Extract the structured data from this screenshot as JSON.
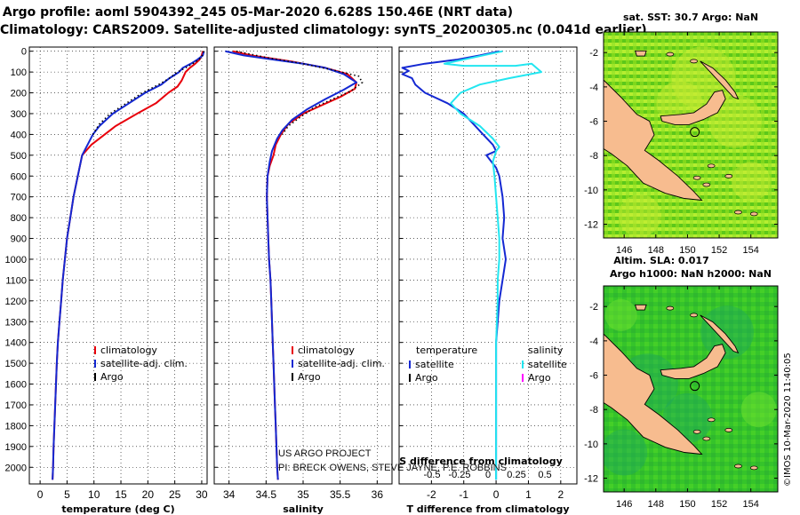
{
  "header": {
    "title_line1": "Argo profile: aoml 5904392_245 05-Mar-2020 6.628S 150.46E (NRT data)",
    "title_line2": "Climatology: CARS2009. Satellite-adjusted climatology: synTS_20200305.nc (0.041d earlier)"
  },
  "credit": "©IMOS 10-Mar-2020 11:40:05",
  "colors": {
    "climatology": "#e8000b",
    "satellite": "#1428d2",
    "argo": "#000000",
    "sal_satellite": "#22e6f0",
    "sal_argo": "#ff00ff",
    "land": "#f7bc8f"
  },
  "chart_data": [
    {
      "type": "line",
      "name": "temperature-panel",
      "xlabel": "temperature (deg C)",
      "ylabel": "depth",
      "xlim": [
        -2,
        31
      ],
      "ylim": [
        2080,
        -20
      ],
      "xticks": [
        0,
        5,
        10,
        15,
        20,
        25,
        30
      ],
      "yticks": [
        0,
        100,
        200,
        300,
        400,
        500,
        600,
        700,
        800,
        900,
        1000,
        1100,
        1200,
        1300,
        1400,
        1500,
        1600,
        1700,
        1800,
        1900,
        2000
      ],
      "legend": [
        "climatology",
        "satellite-adj. clim.",
        "Argo"
      ],
      "series": [
        {
          "name": "climatology",
          "color": "#e8000b",
          "points": [
            [
              30.2,
              0
            ],
            [
              30.0,
              20
            ],
            [
              29.6,
              40
            ],
            [
              28.8,
              60
            ],
            [
              27.8,
              80
            ],
            [
              27.0,
              100
            ],
            [
              26.3,
              140
            ],
            [
              25.5,
              170
            ],
            [
              23.8,
              200
            ],
            [
              21.5,
              250
            ],
            [
              18.0,
              300
            ],
            [
              14.0,
              360
            ],
            [
              11.0,
              420
            ],
            [
              9.5,
              450
            ],
            [
              7.8,
              500
            ],
            [
              7.0,
              600
            ],
            [
              6.2,
              700
            ],
            [
              5.6,
              800
            ],
            [
              5.0,
              900
            ],
            [
              4.6,
              1000
            ],
            [
              4.2,
              1100
            ],
            [
              3.9,
              1200
            ],
            [
              3.6,
              1300
            ],
            [
              3.3,
              1400
            ],
            [
              3.1,
              1500
            ],
            [
              2.95,
              1600
            ],
            [
              2.8,
              1700
            ],
            [
              2.65,
              1800
            ],
            [
              2.5,
              1900
            ],
            [
              2.4,
              2000
            ],
            [
              2.3,
              2060
            ]
          ]
        },
        {
          "name": "satellite",
          "color": "#1428d2",
          "points": [
            [
              30.4,
              0
            ],
            [
              30.2,
              20
            ],
            [
              29.2,
              40
            ],
            [
              28.0,
              60
            ],
            [
              26.5,
              80
            ],
            [
              25.8,
              100
            ],
            [
              24.0,
              130
            ],
            [
              22.5,
              160
            ],
            [
              19.5,
              200
            ],
            [
              16.5,
              250
            ],
            [
              13.5,
              300
            ],
            [
              11.0,
              360
            ],
            [
              9.8,
              400
            ],
            [
              8.8,
              450
            ],
            [
              7.8,
              500
            ],
            [
              7.0,
              600
            ],
            [
              6.2,
              700
            ],
            [
              5.6,
              800
            ],
            [
              5.0,
              900
            ],
            [
              4.6,
              1000
            ],
            [
              4.2,
              1100
            ],
            [
              3.9,
              1200
            ],
            [
              3.6,
              1300
            ],
            [
              3.3,
              1400
            ],
            [
              3.1,
              1500
            ],
            [
              2.95,
              1600
            ],
            [
              2.8,
              1700
            ],
            [
              2.65,
              1800
            ],
            [
              2.5,
              1900
            ],
            [
              2.4,
              2000
            ],
            [
              2.3,
              2060
            ]
          ]
        },
        {
          "name": "Argo",
          "color": "#000000",
          "dotted": true,
          "points": [
            [
              30.4,
              0
            ],
            [
              30.1,
              20
            ],
            [
              29.5,
              40
            ],
            [
              28.3,
              60
            ],
            [
              27.0,
              80
            ],
            [
              25.5,
              100
            ],
            [
              24.0,
              130
            ],
            [
              22.0,
              160
            ],
            [
              19.0,
              200
            ],
            [
              16.0,
              250
            ],
            [
              13.0,
              300
            ],
            [
              11.0,
              350
            ],
            [
              9.8,
              400
            ]
          ]
        }
      ]
    },
    {
      "type": "line",
      "name": "salinity-panel",
      "xlabel": "salinity",
      "xlim": [
        33.8,
        36.2
      ],
      "ylim": [
        2080,
        -20
      ],
      "xticks": [
        34,
        34.5,
        35,
        35.5,
        36
      ],
      "legend": [
        "climatology",
        "satellite-adj. clim.",
        "Argo"
      ],
      "series": [
        {
          "name": "climatology",
          "color": "#e8000b",
          "points": [
            [
              34.05,
              0
            ],
            [
              34.3,
              20
            ],
            [
              34.85,
              50
            ],
            [
              35.3,
              80
            ],
            [
              35.6,
              110
            ],
            [
              35.72,
              150
            ],
            [
              35.7,
              180
            ],
            [
              35.5,
              220
            ],
            [
              35.25,
              260
            ],
            [
              35.0,
              300
            ],
            [
              34.8,
              350
            ],
            [
              34.7,
              400
            ],
            [
              34.63,
              450
            ],
            [
              34.6,
              500
            ],
            [
              34.55,
              550
            ],
            [
              34.52,
              600
            ],
            [
              34.51,
              700
            ],
            [
              34.52,
              800
            ],
            [
              34.53,
              900
            ],
            [
              34.54,
              1000
            ],
            [
              34.56,
              1100
            ],
            [
              34.57,
              1200
            ],
            [
              34.58,
              1300
            ],
            [
              34.59,
              1400
            ],
            [
              34.6,
              1500
            ],
            [
              34.61,
              1600
            ],
            [
              34.62,
              1700
            ],
            [
              34.63,
              1800
            ],
            [
              34.64,
              1900
            ],
            [
              34.65,
              2000
            ],
            [
              34.66,
              2060
            ]
          ]
        },
        {
          "name": "satellite",
          "color": "#1428d2",
          "points": [
            [
              33.95,
              0
            ],
            [
              34.2,
              20
            ],
            [
              34.6,
              40
            ],
            [
              35.0,
              60
            ],
            [
              35.3,
              80
            ],
            [
              35.55,
              110
            ],
            [
              35.72,
              150
            ],
            [
              35.55,
              185
            ],
            [
              35.3,
              230
            ],
            [
              35.05,
              280
            ],
            [
              34.85,
              330
            ],
            [
              34.72,
              380
            ],
            [
              34.65,
              420
            ],
            [
              34.58,
              480
            ],
            [
              34.55,
              530
            ],
            [
              34.52,
              600
            ],
            [
              34.51,
              700
            ],
            [
              34.52,
              800
            ],
            [
              34.53,
              900
            ],
            [
              34.54,
              1000
            ],
            [
              34.56,
              1100
            ],
            [
              34.57,
              1200
            ],
            [
              34.58,
              1300
            ],
            [
              34.59,
              1400
            ],
            [
              34.6,
              1500
            ],
            [
              34.61,
              1600
            ],
            [
              34.62,
              1700
            ],
            [
              34.63,
              1800
            ],
            [
              34.64,
              1900
            ],
            [
              34.65,
              2000
            ],
            [
              34.66,
              2060
            ]
          ]
        },
        {
          "name": "Argo",
          "color": "#000000",
          "dotted": true,
          "points": [
            [
              34.1,
              0
            ],
            [
              34.5,
              30
            ],
            [
              35.0,
              60
            ],
            [
              35.4,
              90
            ],
            [
              35.75,
              120
            ],
            [
              35.8,
              150
            ],
            [
              35.65,
              190
            ],
            [
              35.4,
              230
            ],
            [
              35.15,
              270
            ],
            [
              34.95,
              320
            ],
            [
              34.8,
              360
            ],
            [
              34.72,
              400
            ]
          ]
        }
      ]
    },
    {
      "type": "line",
      "name": "difference-panel",
      "xlabel": "T difference from climatology",
      "xlabel_top": "S difference from climatology",
      "xlim": [
        -3,
        2.5
      ],
      "ylim": [
        2080,
        -20
      ],
      "xticks": [
        -2,
        -1,
        0,
        1,
        2
      ],
      "xticks_s": [
        -0.5,
        -0.25,
        0,
        0.25,
        0.5
      ],
      "legend_temperature": {
        "title": "temperature",
        "items": [
          "satellite",
          "Argo"
        ]
      },
      "legend_salinity": {
        "title": "salinity",
        "items": [
          "satellite",
          "Argo"
        ]
      },
      "series": [
        {
          "name": "T satellite",
          "color": "#1428d2",
          "points": [
            [
              0.1,
              0
            ],
            [
              -0.5,
              20
            ],
            [
              -1.2,
              40
            ],
            [
              -2.2,
              60
            ],
            [
              -2.9,
              80
            ],
            [
              -2.7,
              95
            ],
            [
              -2.9,
              110
            ],
            [
              -2.6,
              130
            ],
            [
              -2.5,
              160
            ],
            [
              -2.2,
              200
            ],
            [
              -1.5,
              250
            ],
            [
              -1.0,
              300
            ],
            [
              -0.7,
              350
            ],
            [
              -0.4,
              400
            ],
            [
              -0.1,
              450
            ],
            [
              0.0,
              480
            ],
            [
              -0.3,
              500
            ],
            [
              -0.2,
              520
            ],
            [
              0.0,
              560
            ],
            [
              0.1,
              600
            ],
            [
              0.2,
              700
            ],
            [
              0.25,
              800
            ],
            [
              0.2,
              900
            ],
            [
              0.3,
              1000
            ],
            [
              0.2,
              1100
            ],
            [
              0.1,
              1200
            ],
            [
              0.05,
              1300
            ],
            [
              0.0,
              1400
            ],
            [
              0.0,
              1600
            ],
            [
              0.0,
              1800
            ],
            [
              0.0,
              2000
            ],
            [
              0.0,
              2060
            ]
          ]
        },
        {
          "name": "S satellite",
          "color": "#22e6f0",
          "points": [
            [
              0.2,
              0
            ],
            [
              -1.6,
              60
            ],
            [
              -1.0,
              70
            ],
            [
              0.6,
              70
            ],
            [
              1.1,
              60
            ],
            [
              1.4,
              100
            ],
            [
              0.4,
              130
            ],
            [
              -0.5,
              160
            ],
            [
              -1.1,
              200
            ],
            [
              -1.4,
              250
            ],
            [
              -1.1,
              300
            ],
            [
              -0.5,
              360
            ],
            [
              -0.1,
              420
            ],
            [
              0.1,
              460
            ],
            [
              0.0,
              480
            ],
            [
              -0.1,
              530
            ],
            [
              -0.05,
              600
            ],
            [
              0.0,
              700
            ],
            [
              0.05,
              800
            ],
            [
              0.1,
              900
            ],
            [
              0.1,
              1000
            ],
            [
              0.05,
              1100
            ],
            [
              0.05,
              1200
            ],
            [
              0.0,
              1400
            ],
            [
              0.0,
              1600
            ],
            [
              0.0,
              1800
            ],
            [
              0.0,
              2000
            ],
            [
              0.0,
              2060
            ]
          ]
        }
      ]
    }
  ],
  "maps": {
    "top": {
      "title": "sat. SST: 30.7 Argo: NaN",
      "yticks": [
        -2,
        -4,
        -6,
        -8,
        -10,
        -12
      ],
      "xticks": [
        146,
        148,
        150,
        152,
        154
      ]
    },
    "bottom": {
      "title_line1": "Altim. SLA: 0.017",
      "title_line2": "Argo h1000: NaN h2000: NaN",
      "yticks": [
        -2,
        -4,
        -6,
        -8,
        -10,
        -12
      ],
      "xticks": [
        146,
        148,
        150,
        152,
        154
      ]
    },
    "xlim": [
      144.7,
      155.7
    ],
    "ylim": [
      -12.8,
      -0.8
    ],
    "float_position": {
      "lon": 150.46,
      "lat": -6.628
    }
  },
  "annotations": {
    "project_line1": "US ARGO PROJECT",
    "project_line2": "PI: BRECK OWENS, STEVE JAYNE, P.E. ROBBINS"
  }
}
